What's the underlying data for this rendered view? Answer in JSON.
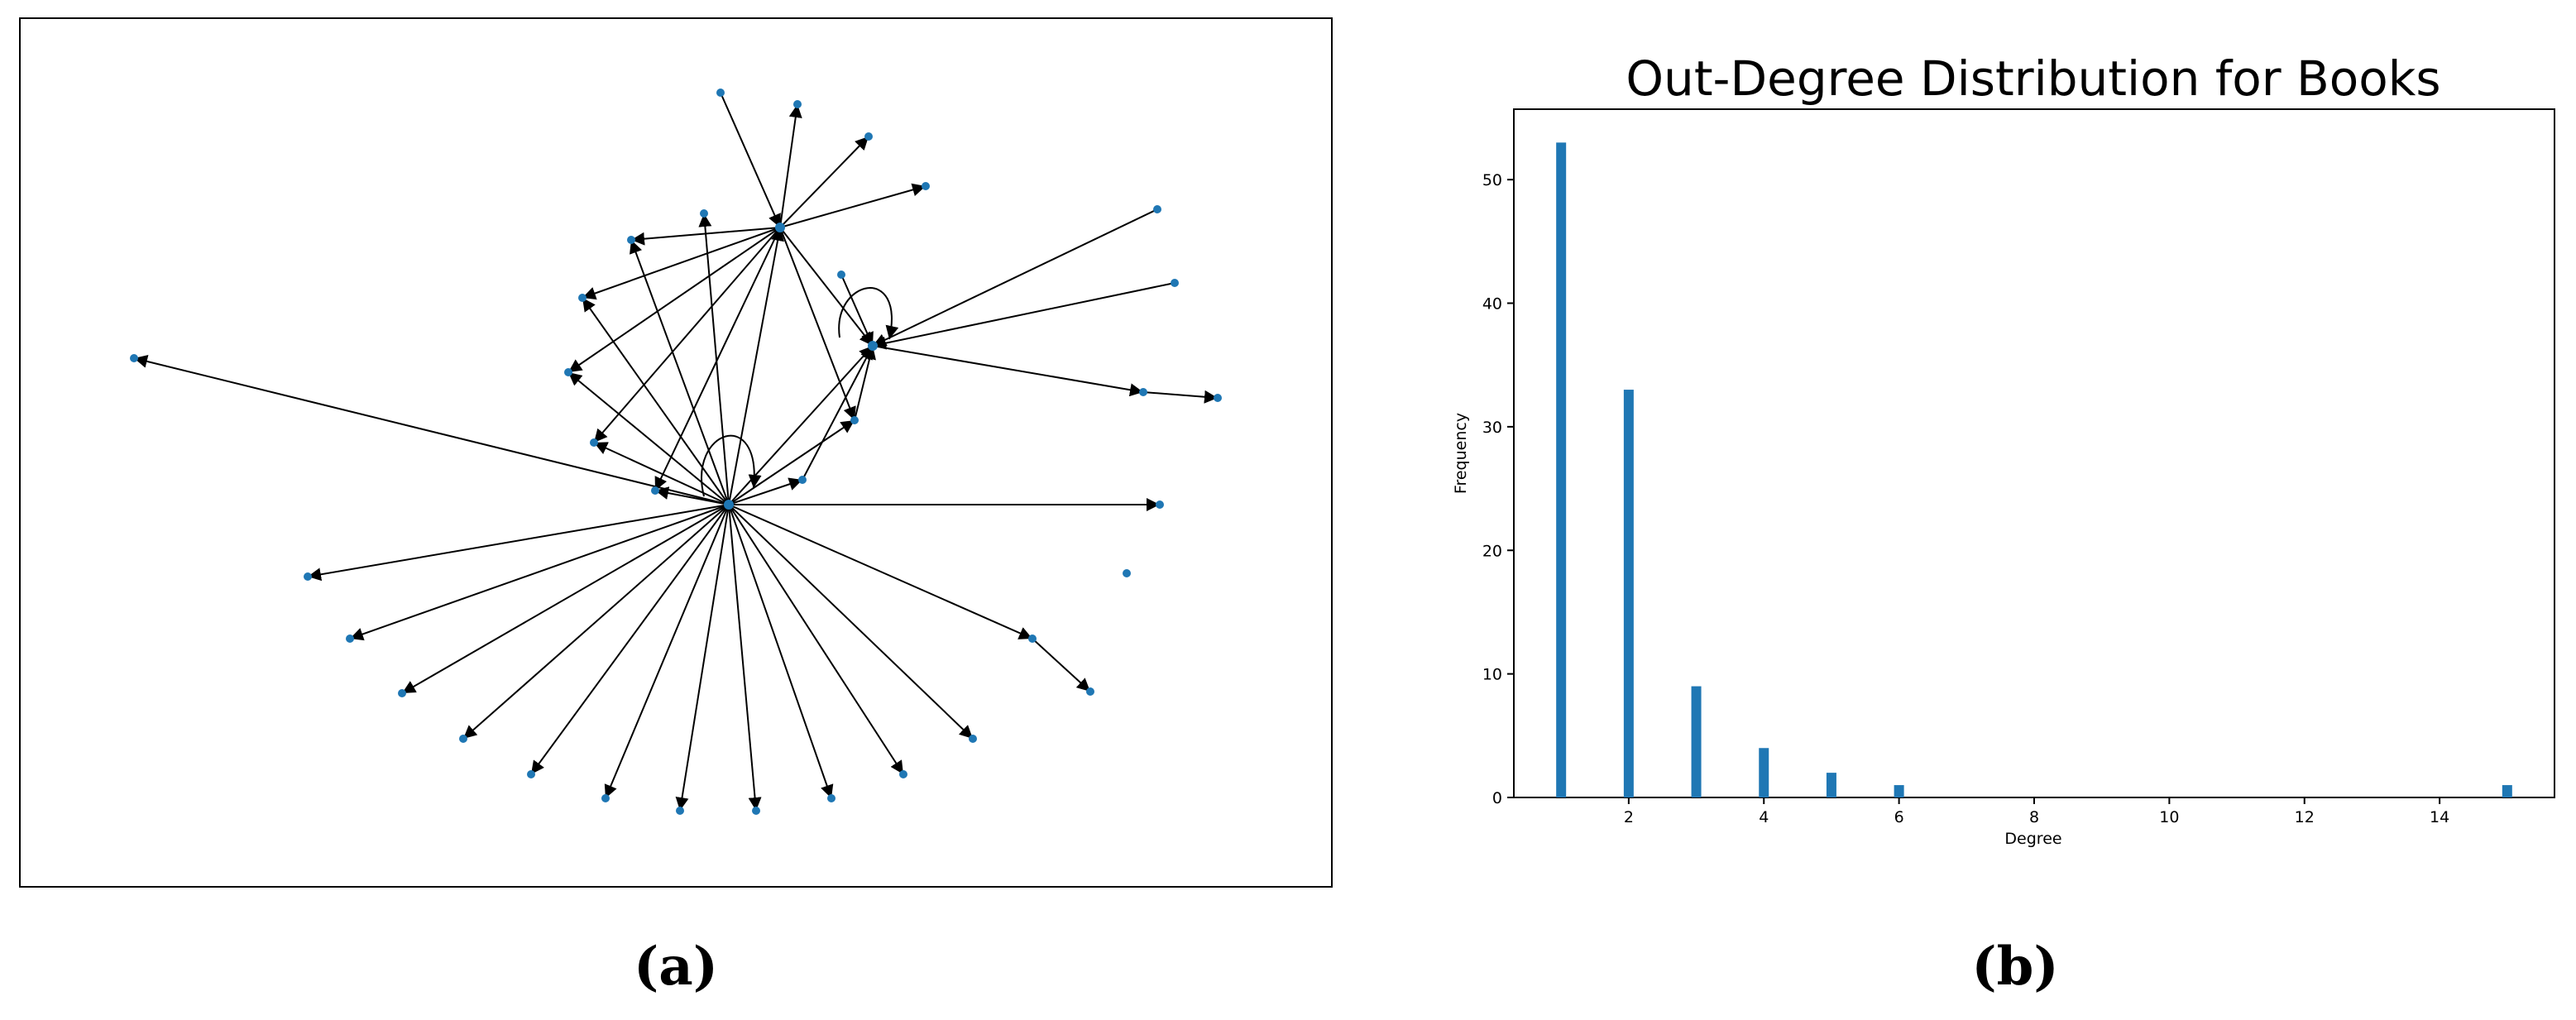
{
  "panel_a": {
    "caption": "(a)"
  },
  "panel_b": {
    "caption": "(b)"
  },
  "colors": {
    "bar": "#1f77b4",
    "node": "#1f77b4",
    "edge": "#000000"
  },
  "chart_data": {
    "type": "bar",
    "title": "Out-Degree Distribution for Books",
    "xlabel": "Degree",
    "ylabel": "Frequency",
    "x": [
      1,
      2,
      3,
      4,
      5,
      6,
      15
    ],
    "values": [
      53,
      33,
      9,
      4,
      2,
      1,
      1
    ],
    "xlim": [
      0.3,
      15.7
    ],
    "ylim": [
      0,
      55.7
    ],
    "xticks": [
      2,
      4,
      6,
      8,
      10,
      12,
      14
    ],
    "yticks": [
      0,
      10,
      20,
      30,
      40,
      50
    ],
    "grid": false
  }
}
